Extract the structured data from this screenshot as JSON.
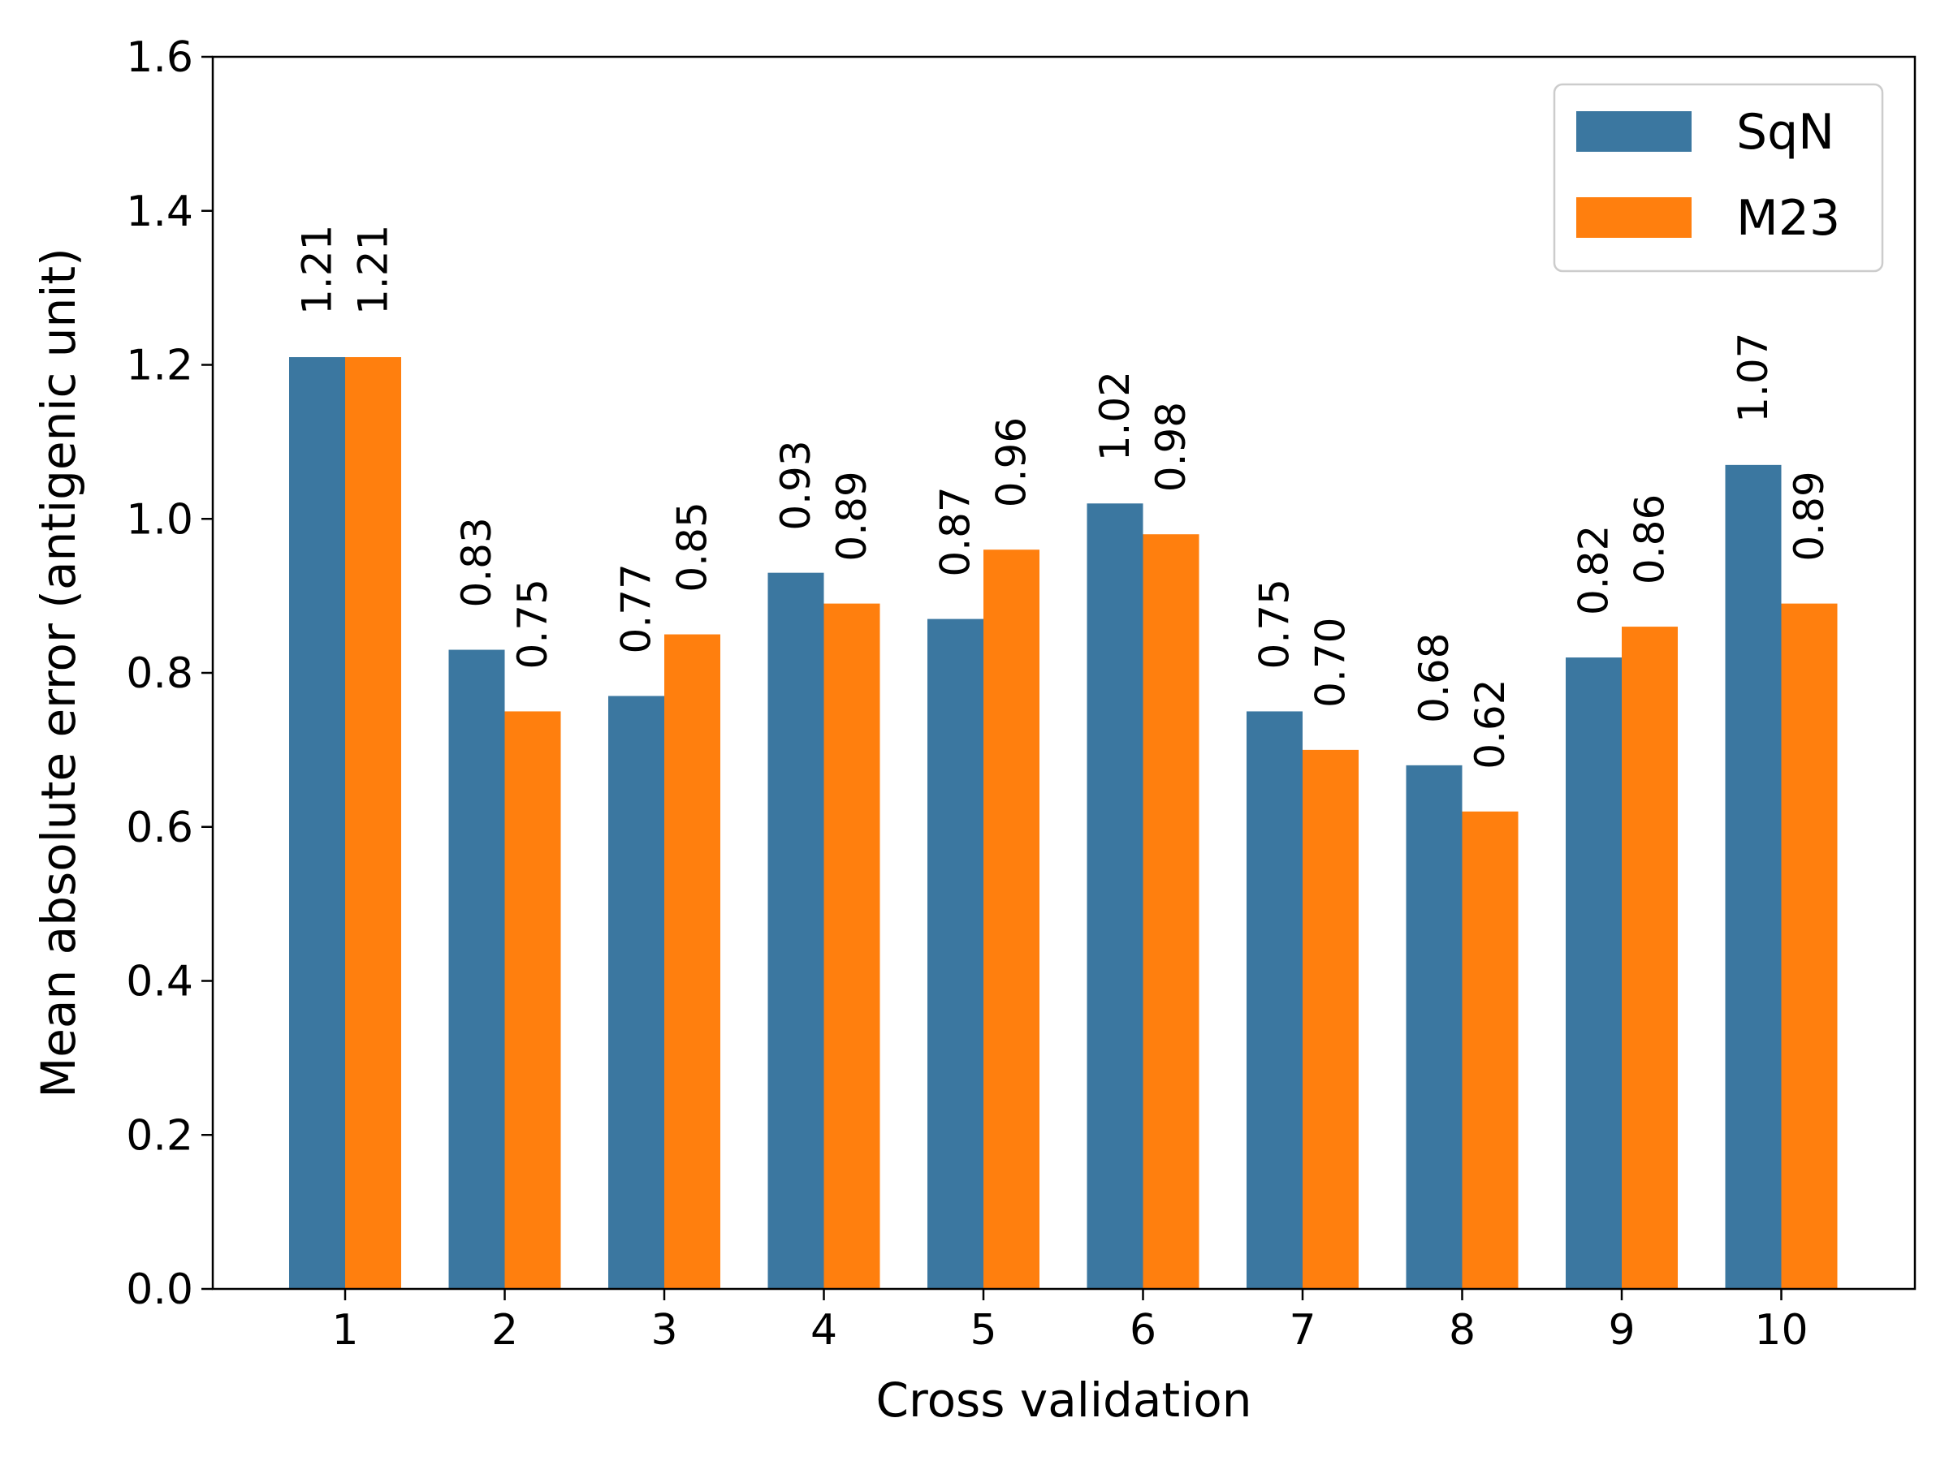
{
  "chart_data": {
    "type": "bar",
    "title": "",
    "xlabel": "Cross validation",
    "ylabel": "Mean absolute error (antigenic unit)",
    "categories": [
      "1",
      "2",
      "3",
      "4",
      "5",
      "6",
      "7",
      "8",
      "9",
      "10"
    ],
    "series": [
      {
        "name": "SqN",
        "color": "#3b77a0",
        "values": [
          1.21,
          0.83,
          0.77,
          0.93,
          0.87,
          1.02,
          0.75,
          0.68,
          0.82,
          1.07
        ],
        "labels": [
          "1.21",
          "0.83",
          "0.77",
          "0.93",
          "0.87",
          "1.02",
          "0.75",
          "0.68",
          "0.82",
          "1.07"
        ]
      },
      {
        "name": "M23",
        "color": "#ff7f0e",
        "values": [
          1.21,
          0.75,
          0.85,
          0.89,
          0.96,
          0.98,
          0.7,
          0.62,
          0.86,
          0.89
        ],
        "labels": [
          "1.21",
          "0.75",
          "0.85",
          "0.89",
          "0.96",
          "0.98",
          "0.70",
          "0.62",
          "0.86",
          "0.89"
        ]
      }
    ],
    "ylim": [
      0,
      1.6
    ],
    "yticks": [
      "0.0",
      "0.2",
      "0.4",
      "0.6",
      "0.8",
      "1.0",
      "1.2",
      "1.4",
      "1.6"
    ],
    "grid": false,
    "legend": "top-right"
  }
}
